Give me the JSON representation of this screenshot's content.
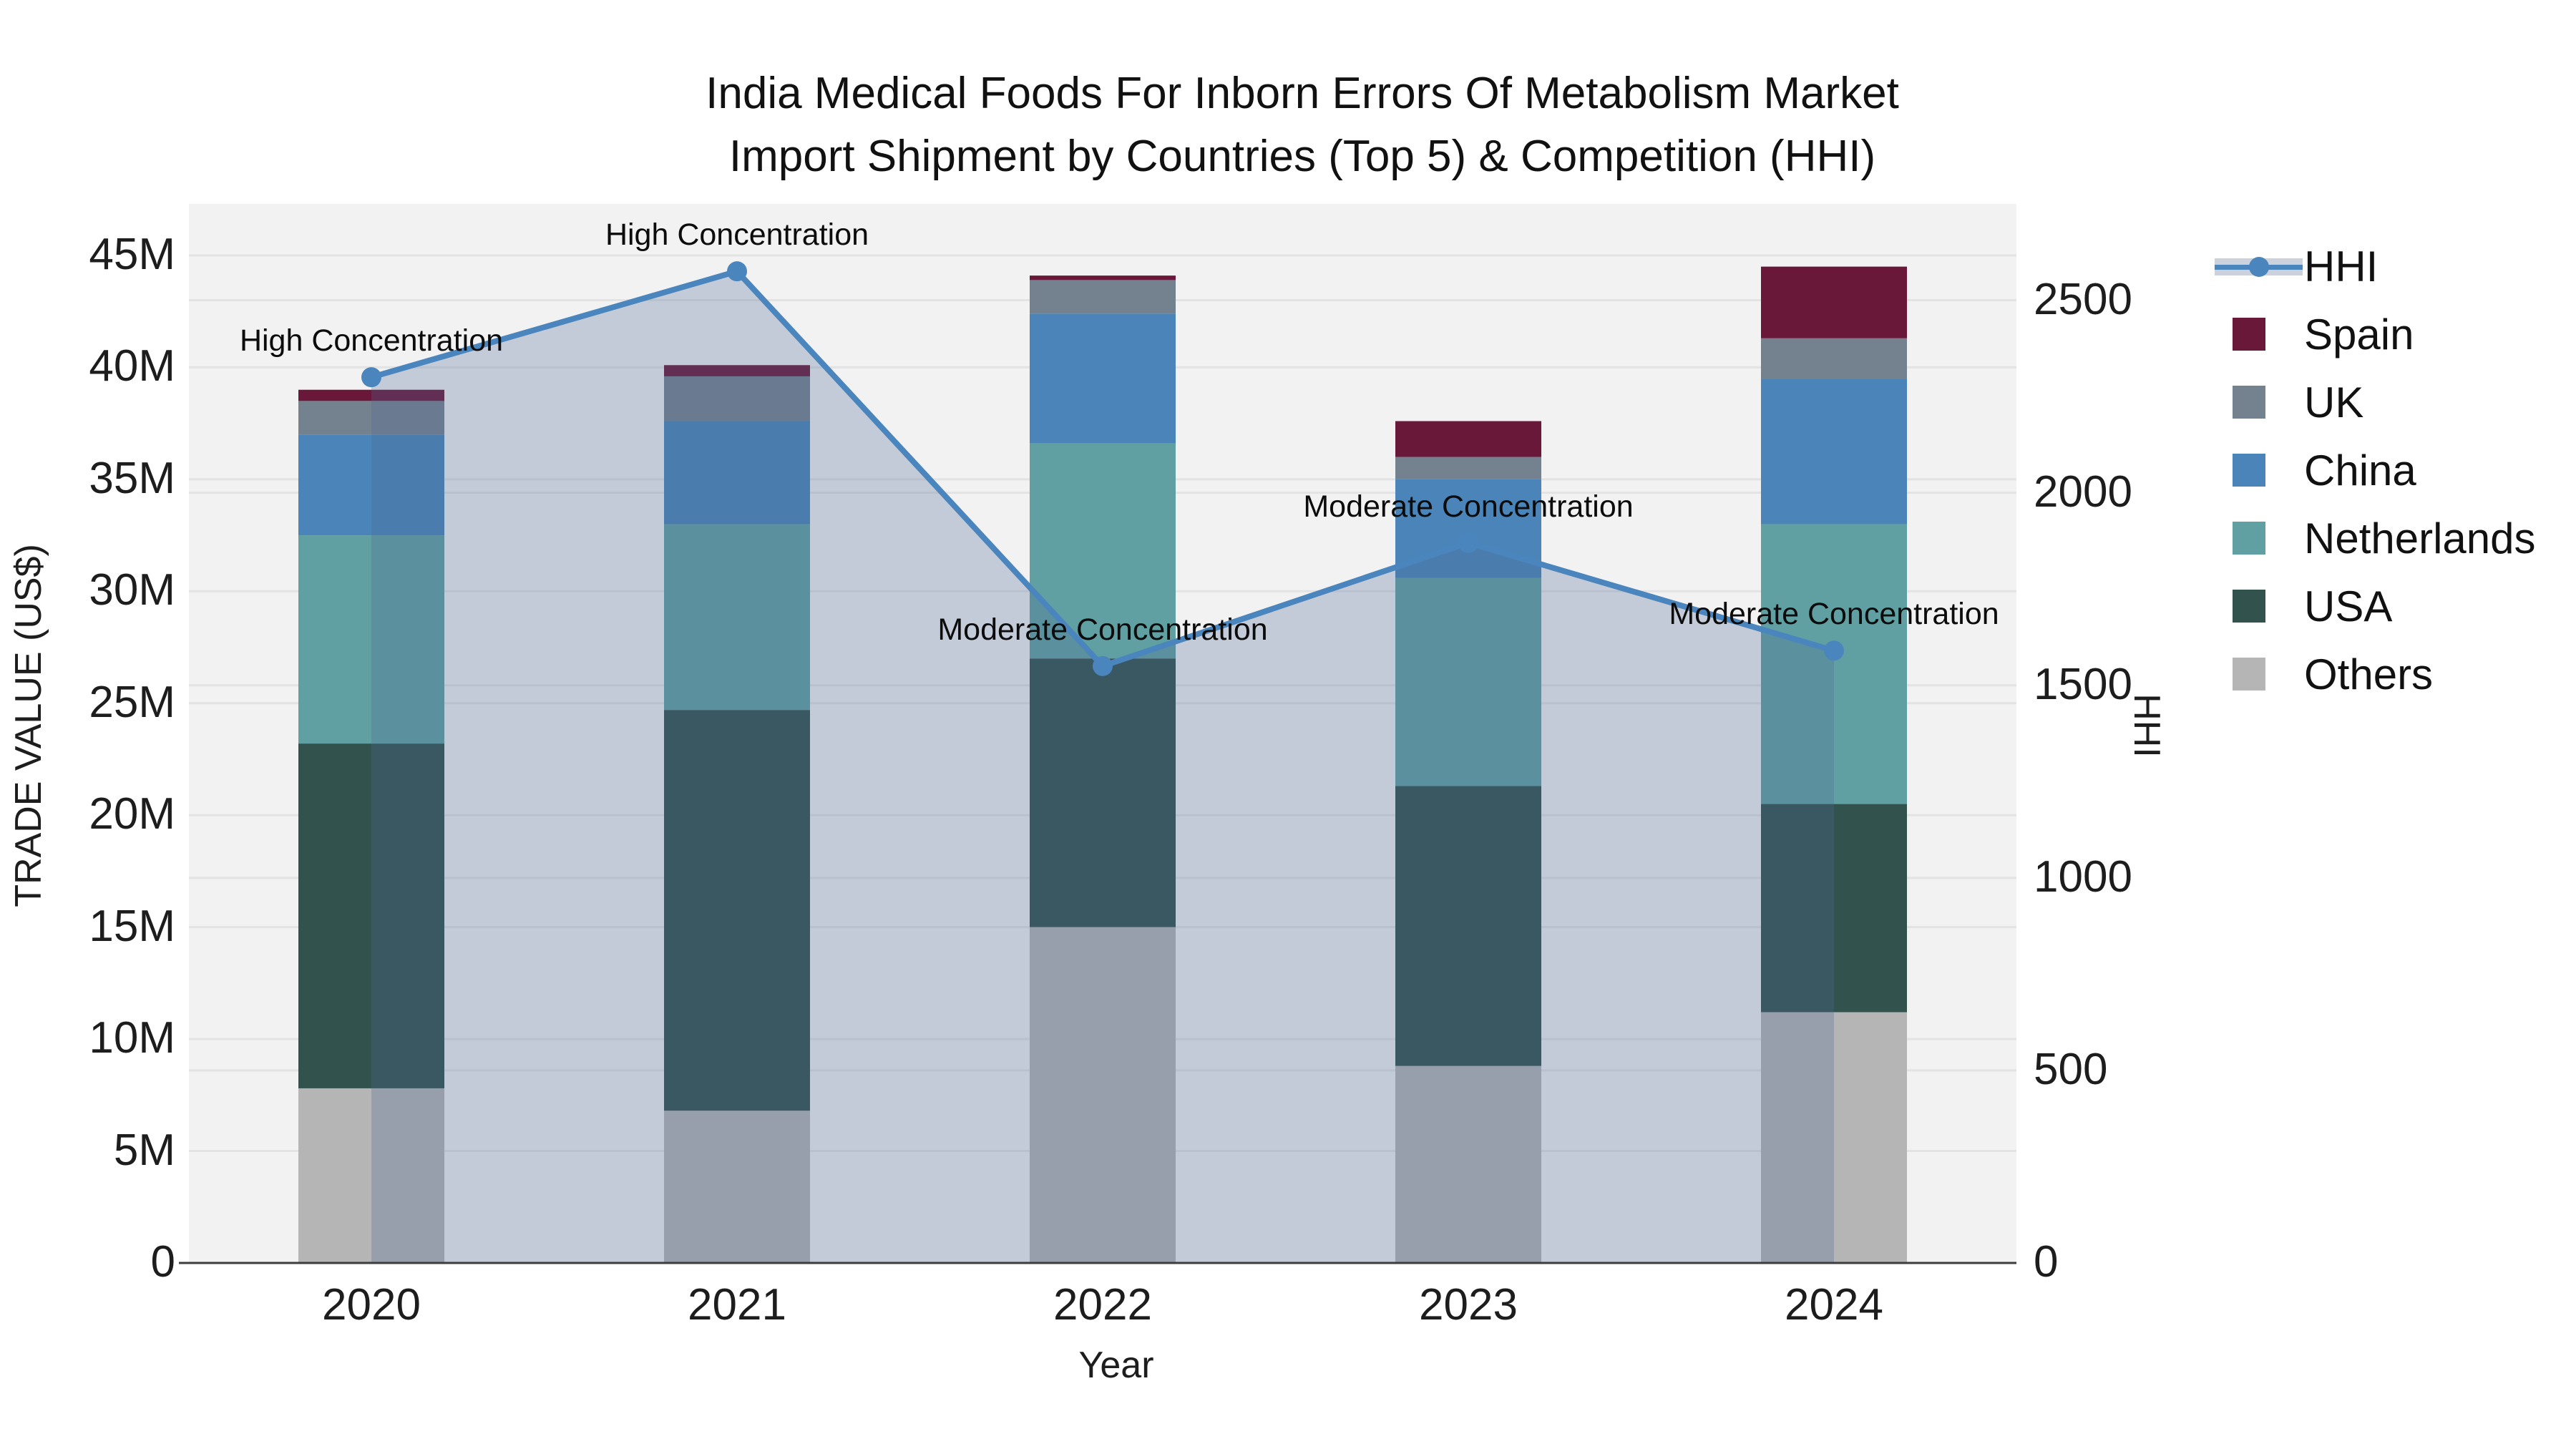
{
  "title": {
    "line1": "India Medical Foods For Inborn Errors Of Metabolism Market",
    "line2": "Import Shipment by Countries (Top 5) & Competition (HHI)"
  },
  "axes": {
    "left": {
      "label": "TRADE VALUE (US$)",
      "ticks": [
        {
          "value": 0,
          "label": "0"
        },
        {
          "value": 5,
          "label": "5M"
        },
        {
          "value": 10,
          "label": "10M"
        },
        {
          "value": 15,
          "label": "15M"
        },
        {
          "value": 20,
          "label": "20M"
        },
        {
          "value": 25,
          "label": "25M"
        },
        {
          "value": 30,
          "label": "30M"
        },
        {
          "value": 35,
          "label": "35M"
        },
        {
          "value": 40,
          "label": "40M"
        },
        {
          "value": 45,
          "label": "45M"
        }
      ]
    },
    "right": {
      "label": "HHI",
      "ticks": [
        {
          "value": 0,
          "label": "0"
        },
        {
          "value": 500,
          "label": "500"
        },
        {
          "value": 1000,
          "label": "1000"
        },
        {
          "value": 1500,
          "label": "1500"
        },
        {
          "value": 2000,
          "label": "2000"
        },
        {
          "value": 2500,
          "label": "2500"
        }
      ]
    },
    "x": {
      "label": "Year",
      "categories": [
        "2020",
        "2021",
        "2022",
        "2023",
        "2024"
      ]
    }
  },
  "chart_data": {
    "type": "stacked-bar+line",
    "title": "India Medical Foods For Inborn Errors Of Metabolism Market Import Shipment by Countries (Top 5) & Competition (HHI)",
    "categories": [
      "2020",
      "2021",
      "2022",
      "2023",
      "2024"
    ],
    "value_unit": "million US$",
    "series": [
      {
        "name": "Others",
        "color": "#b5b5b5",
        "values": [
          7.8,
          6.8,
          15.0,
          8.8,
          11.2
        ]
      },
      {
        "name": "USA",
        "color": "#32524e",
        "values": [
          15.4,
          17.9,
          12.0,
          12.5,
          9.3
        ]
      },
      {
        "name": "Netherlands",
        "color": "#60a0a2",
        "values": [
          9.3,
          8.3,
          9.6,
          9.3,
          12.5
        ]
      },
      {
        "name": "China",
        "color": "#4a84b8",
        "values": [
          4.5,
          4.6,
          5.8,
          4.4,
          6.5
        ]
      },
      {
        "name": "UK",
        "color": "#74828f",
        "values": [
          1.5,
          2.0,
          1.5,
          1.0,
          1.8
        ]
      },
      {
        "name": "Spain",
        "color": "#6a1839",
        "values": [
          0.5,
          0.5,
          0.2,
          1.6,
          3.2
        ]
      }
    ],
    "stack_totals": [
      39.0,
      40.1,
      44.1,
      37.6,
      44.5
    ],
    "line_series": {
      "name": "HHI",
      "color": "#4a86bd",
      "area_color": "rgba(80,105,150,0.28)",
      "values": [
        2300,
        2575,
        1550,
        1870,
        1590
      ]
    },
    "annotations": [
      {
        "category": "2020",
        "text": "High Concentration"
      },
      {
        "category": "2021",
        "text": "High Concentration"
      },
      {
        "category": "2022",
        "text": "Moderate Concentration"
      },
      {
        "category": "2023",
        "text": "Moderate Concentration"
      },
      {
        "category": "2024",
        "text": "Moderate Concentration"
      }
    ],
    "xlabel": "Year",
    "ylabel_left": "TRADE VALUE (US$)",
    "ylabel_right": "HHI",
    "ylim_left": [
      0,
      47.3
    ],
    "ylim_right": [
      0,
      2750
    ],
    "grid": true,
    "legend_position": "right"
  },
  "legend": {
    "items": [
      {
        "label": "HHI",
        "type": "line",
        "color": "#4a86bd"
      },
      {
        "label": "Spain",
        "type": "swatch",
        "color": "#6a1839"
      },
      {
        "label": "UK",
        "type": "swatch",
        "color": "#74828f"
      },
      {
        "label": "China",
        "type": "swatch",
        "color": "#4a84b8"
      },
      {
        "label": "Netherlands",
        "type": "swatch",
        "color": "#60a0a2"
      },
      {
        "label": "USA",
        "type": "swatch",
        "color": "#32524e"
      },
      {
        "label": "Others",
        "type": "swatch",
        "color": "#b5b5b5"
      }
    ]
  },
  "colors": {
    "plot_bg": "#f2f2f2",
    "grid": "#e3e3e3",
    "axis_line": "#3d3d3d",
    "text": "#1d1d1d"
  }
}
